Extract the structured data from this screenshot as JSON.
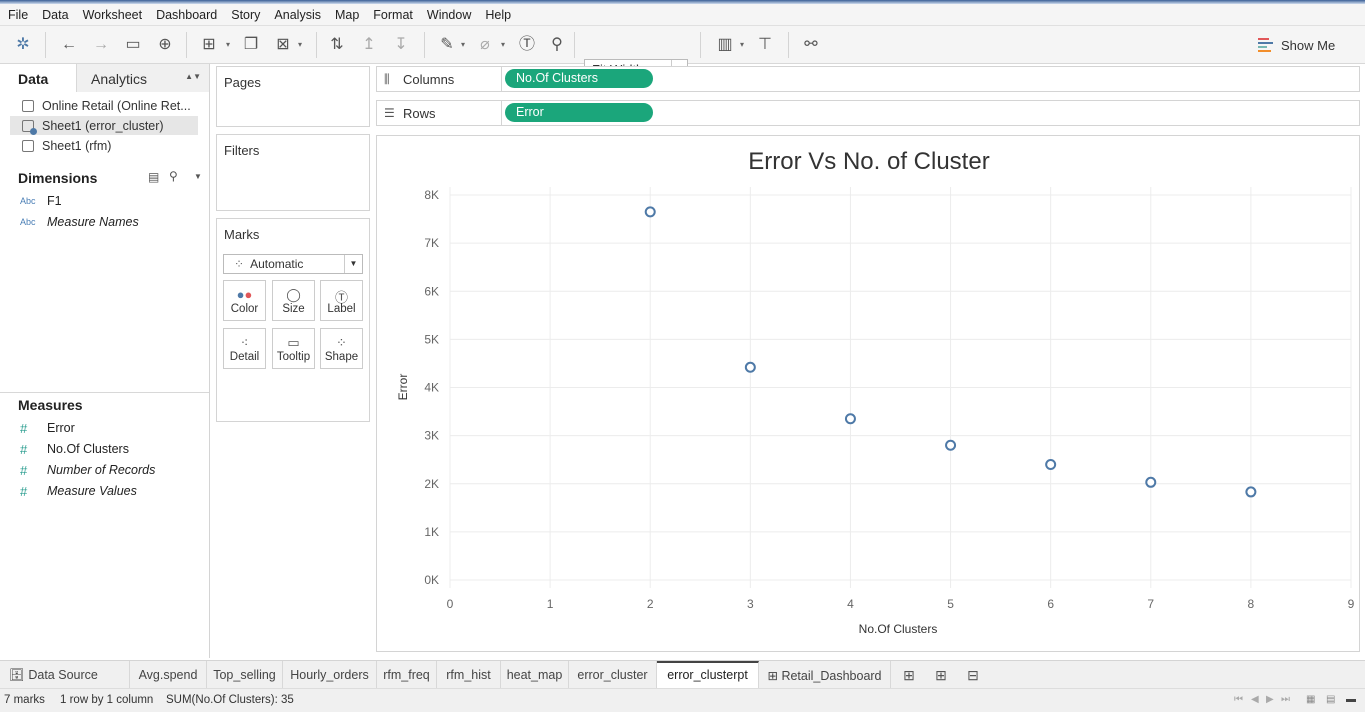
{
  "menu": [
    "File",
    "Data",
    "Worksheet",
    "Dashboard",
    "Story",
    "Analysis",
    "Map",
    "Format",
    "Window",
    "Help"
  ],
  "toolbar": {
    "fit": "Fit Width",
    "show_me": "Show Me"
  },
  "left": {
    "tab_data": "Data",
    "tab_analytics": "Analytics",
    "datasources": [
      "Online Retail (Online Ret...",
      "Sheet1 (error_cluster)",
      "Sheet1 (rfm)"
    ],
    "dimensions_title": "Dimensions",
    "dimensions": [
      {
        "type": "Abc",
        "name": "F1",
        "italic": false
      },
      {
        "type": "Abc",
        "name": "Measure Names",
        "italic": true
      }
    ],
    "measures_title": "Measures",
    "measures": [
      {
        "name": "Error",
        "italic": false
      },
      {
        "name": "No.Of Clusters",
        "italic": false
      },
      {
        "name": "Number of Records",
        "italic": true
      },
      {
        "name": "Measure Values",
        "italic": true
      }
    ]
  },
  "cards": {
    "pages": "Pages",
    "filters": "Filters",
    "marks": "Marks",
    "mark_type": "Automatic",
    "buttons": [
      "Color",
      "Size",
      "Label",
      "Detail",
      "Tooltip",
      "Shape"
    ]
  },
  "shelves": {
    "columns_label": "Columns",
    "columns_pill": "No.Of Clusters",
    "rows_label": "Rows",
    "rows_pill": "Error"
  },
  "chart_data": {
    "type": "scatter",
    "title": "Error Vs No. of Cluster",
    "xlabel": "No.Of Clusters",
    "ylabel": "Error",
    "x": [
      2,
      3,
      4,
      5,
      6,
      7,
      8
    ],
    "y": [
      7650,
      4420,
      3350,
      2800,
      2400,
      2030,
      1830
    ],
    "xlim": [
      0,
      9
    ],
    "ylim": [
      0,
      8000
    ],
    "xticks": [
      "0",
      "1",
      "2",
      "3",
      "4",
      "5",
      "6",
      "7",
      "8",
      "9"
    ],
    "yticks": [
      "0K",
      "1K",
      "2K",
      "3K",
      "4K",
      "5K",
      "6K",
      "7K",
      "8K"
    ],
    "grid": true,
    "marker_color": "#4e79a7"
  },
  "sheets": [
    "Data Source",
    "Avg.spend",
    "Top_selling",
    "Hourly_orders",
    "rfm_freq",
    "rfm_hist",
    "heat_map",
    "error_cluster",
    "error_clusterpt",
    "Retail_Dashboard"
  ],
  "active_sheet": "error_clusterpt",
  "status": {
    "marks": "7 marks",
    "rows": "1 row by 1 column",
    "sum": "SUM(No.Of Clusters): 35"
  }
}
